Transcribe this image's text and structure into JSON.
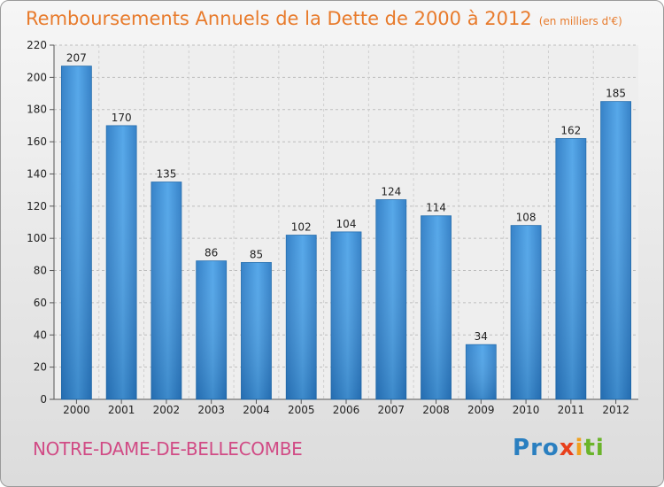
{
  "header": {
    "title": "Remboursements Annuels de la Dette de 2000 à 2012",
    "unit": "(en milliers d'€)"
  },
  "footer": {
    "commune": "NOTRE-DAME-DE-BELLECOMBE",
    "logo_letters": [
      {
        "ch": "P",
        "color": "#2a7fc0"
      },
      {
        "ch": "r",
        "color": "#2a7fc0"
      },
      {
        "ch": "o",
        "color": "#2a7fc0"
      },
      {
        "ch": "x",
        "color": "#e8401c"
      },
      {
        "ch": "i",
        "color": "#f0a020"
      },
      {
        "ch": "t",
        "color": "#6ab42a"
      },
      {
        "ch": "i",
        "color": "#6ab42a"
      }
    ]
  },
  "chart_data": {
    "type": "bar",
    "title": "Remboursements Annuels de la Dette de 2000 à 2012",
    "subtitle": "(en milliers d'€)",
    "xlabel": "",
    "ylabel": "",
    "categories": [
      "2000",
      "2001",
      "2002",
      "2003",
      "2004",
      "2005",
      "2006",
      "2007",
      "2008",
      "2009",
      "2010",
      "2011",
      "2012"
    ],
    "values": [
      207,
      170,
      135,
      86,
      85,
      102,
      104,
      124,
      114,
      34,
      108,
      162,
      185
    ],
    "value_labels": [
      "207",
      "170",
      "135",
      "86",
      "85",
      "102",
      "104",
      "124",
      "114",
      "34",
      "108",
      "162",
      "185"
    ],
    "ylim": [
      0,
      220
    ],
    "yticks": [
      0,
      20,
      40,
      60,
      80,
      100,
      120,
      140,
      160,
      180,
      200,
      220
    ],
    "grid": true,
    "bar_color": "#3d8fd6"
  }
}
